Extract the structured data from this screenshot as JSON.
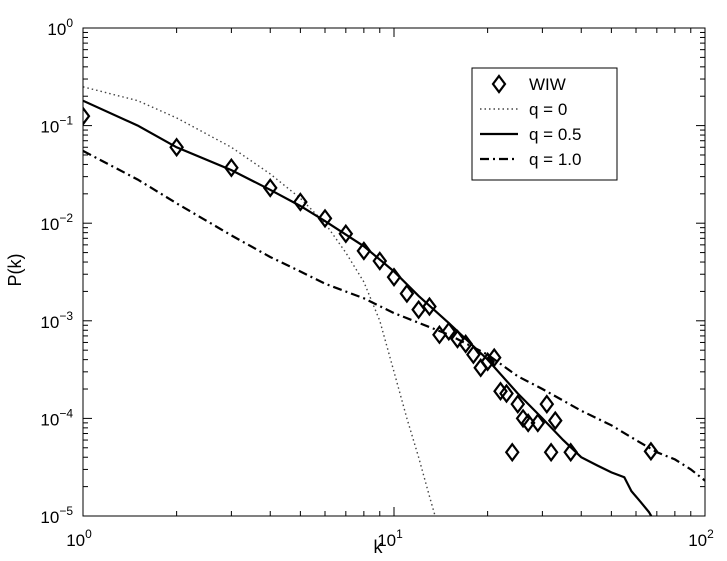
{
  "chart_data": {
    "type": "scatter",
    "xlabel": "k",
    "ylabel": "P(k)",
    "xscale": "log",
    "yscale": "log",
    "xlim": [
      1,
      100
    ],
    "ylim": [
      1e-05,
      1
    ],
    "grid": false,
    "legend_position": "top-right",
    "x_ticks": [
      {
        "base": "10",
        "exp": "0",
        "value": 1
      },
      {
        "base": "10",
        "exp": "1",
        "value": 10
      },
      {
        "base": "10",
        "exp": "2",
        "value": 100
      }
    ],
    "y_ticks": [
      {
        "base": "10",
        "exp": "0",
        "value": 1
      },
      {
        "base": "10",
        "exp": "−1",
        "value": 0.1
      },
      {
        "base": "10",
        "exp": "−2",
        "value": 0.01
      },
      {
        "base": "10",
        "exp": "−3",
        "value": 0.001
      },
      {
        "base": "10",
        "exp": "−4",
        "value": 0.0001
      },
      {
        "base": "10",
        "exp": "−5",
        "value": 1e-05
      }
    ],
    "series": [
      {
        "name": "WIW",
        "kind": "markers",
        "marker": "diamond",
        "points": [
          [
            1,
            0.125
          ],
          [
            2,
            0.06
          ],
          [
            3,
            0.037
          ],
          [
            4,
            0.023
          ],
          [
            5,
            0.0165
          ],
          [
            6,
            0.0112
          ],
          [
            7,
            0.0078
          ],
          [
            8,
            0.0052
          ],
          [
            9,
            0.0041
          ],
          [
            10,
            0.0028
          ],
          [
            11,
            0.0019
          ],
          [
            12,
            0.0013
          ],
          [
            13,
            0.0014
          ],
          [
            14,
            0.00072
          ],
          [
            15,
            0.00078
          ],
          [
            16,
            0.00065
          ],
          [
            17,
            0.00058
          ],
          [
            18,
            0.00045
          ],
          [
            19,
            0.00033
          ],
          [
            20,
            0.00038
          ],
          [
            21,
            0.00042
          ],
          [
            22,
            0.00019
          ],
          [
            23,
            0.00018
          ],
          [
            24,
            4.5e-05
          ],
          [
            25,
            0.00014
          ],
          [
            26,
            0.0001
          ],
          [
            27,
            9e-05
          ],
          [
            29,
            9e-05
          ],
          [
            31,
            0.00014
          ],
          [
            32,
            4.5e-05
          ],
          [
            33,
            9.5e-05
          ],
          [
            37,
            4.5e-05
          ],
          [
            67,
            4.6e-05
          ]
        ]
      },
      {
        "name": "q = 0",
        "kind": "line",
        "dash": "dotted",
        "points": [
          [
            1,
            0.25
          ],
          [
            1.5,
            0.18
          ],
          [
            2,
            0.12
          ],
          [
            3,
            0.06
          ],
          [
            4,
            0.032
          ],
          [
            5,
            0.018
          ],
          [
            6,
            0.01
          ],
          [
            7,
            0.005
          ],
          [
            8,
            0.0025
          ],
          [
            9,
            0.001
          ],
          [
            10,
            0.0003
          ],
          [
            11,
            0.0001
          ],
          [
            12,
            4e-05
          ],
          [
            13,
            1.6e-05
          ],
          [
            14,
            7e-06
          ]
        ]
      },
      {
        "name": "q = 0.5",
        "kind": "line",
        "dash": "solid",
        "points": [
          [
            1,
            0.18
          ],
          [
            1.5,
            0.1
          ],
          [
            2,
            0.06
          ],
          [
            3,
            0.035
          ],
          [
            4,
            0.022
          ],
          [
            5,
            0.015
          ],
          [
            6,
            0.0105
          ],
          [
            8,
            0.0058
          ],
          [
            10,
            0.0032
          ],
          [
            12,
            0.0018
          ],
          [
            15,
            0.00095
          ],
          [
            20,
            0.0004
          ],
          [
            25,
            0.00018
          ],
          [
            30,
            0.0001
          ],
          [
            35,
            6e-05
          ],
          [
            40,
            4e-05
          ],
          [
            45,
            3.3e-05
          ],
          [
            50,
            2.8e-05
          ],
          [
            55,
            2.5e-05
          ],
          [
            58,
            1.8e-05
          ],
          [
            62,
            1.4e-05
          ],
          [
            66,
            1.1e-05
          ],
          [
            70,
            8e-06
          ]
        ]
      },
      {
        "name": "q = 1.0",
        "kind": "line",
        "dash": "dashdot",
        "points": [
          [
            1,
            0.055
          ],
          [
            1.5,
            0.028
          ],
          [
            2,
            0.016
          ],
          [
            3,
            0.0075
          ],
          [
            4,
            0.0045
          ],
          [
            5,
            0.0032
          ],
          [
            6,
            0.0024
          ],
          [
            8,
            0.0017
          ],
          [
            10,
            0.0012
          ],
          [
            15,
            0.00072
          ],
          [
            20,
            0.00045
          ],
          [
            25,
            0.00027
          ],
          [
            30,
            0.0002
          ],
          [
            40,
            0.00012
          ],
          [
            50,
            8.5e-05
          ],
          [
            60,
            6e-05
          ],
          [
            70,
            4.5e-05
          ],
          [
            80,
            3.8e-05
          ],
          [
            90,
            3e-05
          ],
          [
            100,
            2.3e-05
          ]
        ]
      }
    ]
  }
}
